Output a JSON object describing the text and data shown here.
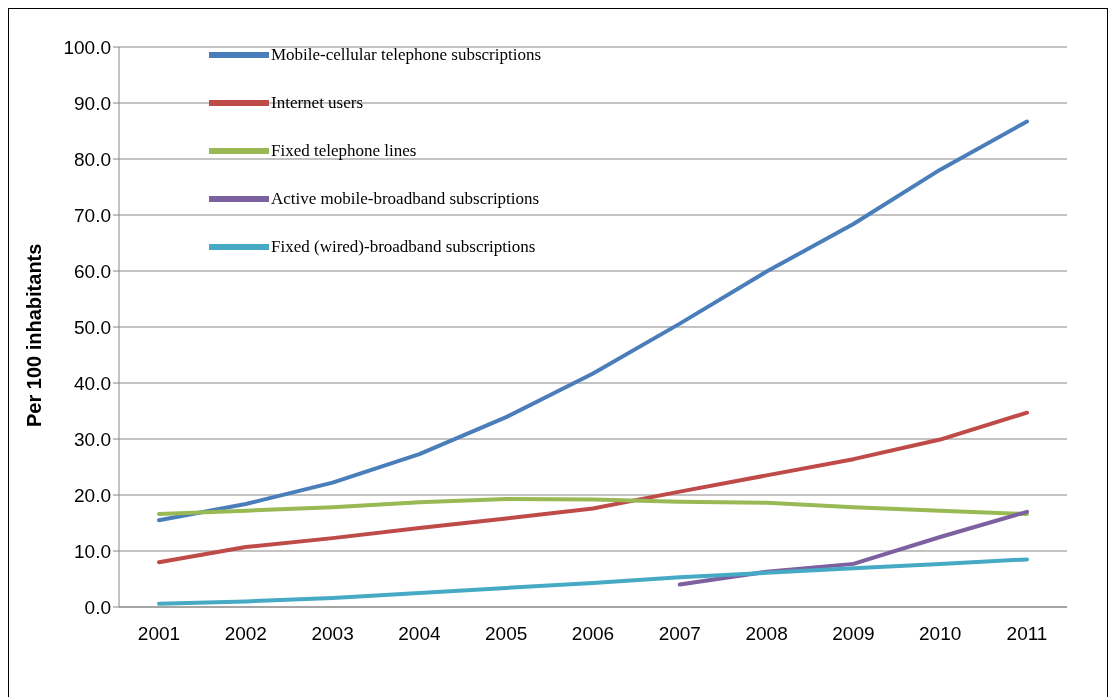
{
  "chart_data": {
    "type": "line",
    "ylabel": "Per 100 inhabitants",
    "categories": [
      "2001",
      "2002",
      "2003",
      "2004",
      "2005",
      "2006",
      "2007",
      "2008",
      "2009",
      "2010",
      "2011"
    ],
    "ylim": [
      0,
      100
    ],
    "yticks": [
      {
        "value": 0,
        "label": "0.0"
      },
      {
        "value": 10,
        "label": "10.0"
      },
      {
        "value": 20,
        "label": "20.0"
      },
      {
        "value": 30,
        "label": "30.0"
      },
      {
        "value": 40,
        "label": "40.0"
      },
      {
        "value": 50,
        "label": "50.0"
      },
      {
        "value": 60,
        "label": "60.0"
      },
      {
        "value": 70,
        "label": "70.0"
      },
      {
        "value": 80,
        "label": "80.0"
      },
      {
        "value": 90,
        "label": "90.0"
      },
      {
        "value": 100,
        "label": "100.0"
      }
    ],
    "grid": "y",
    "legend": "top left",
    "marker": "none",
    "series": [
      {
        "name": "Mobile-cellular telephone subscriptions",
        "color": "#4a7ebb",
        "values": [
          15.5,
          18.4,
          22.2,
          27.3,
          33.9,
          41.7,
          50.6,
          59.9,
          68.4,
          78.1,
          86.7
        ]
      },
      {
        "name": "Internet users",
        "color": "#be4b48",
        "values": [
          8.0,
          10.7,
          12.3,
          14.1,
          15.8,
          17.6,
          20.6,
          23.5,
          26.4,
          29.9,
          34.7
        ]
      },
      {
        "name": "Fixed telephone lines",
        "color": "#98b954",
        "values": [
          16.6,
          17.2,
          17.8,
          18.7,
          19.3,
          19.2,
          18.8,
          18.6,
          17.8,
          17.2,
          16.6
        ]
      },
      {
        "name": "Active mobile-broadband subscriptions",
        "color": "#7d60a0",
        "values": [
          null,
          null,
          null,
          null,
          null,
          null,
          4.0,
          6.3,
          7.7,
          12.5,
          17.0
        ]
      },
      {
        "name": "Fixed (wired)-broadband subscriptions",
        "color": "#46aac5",
        "values": [
          0.6,
          1.0,
          1.6,
          2.5,
          3.4,
          4.3,
          5.3,
          6.1,
          6.9,
          7.7,
          8.5
        ]
      }
    ]
  }
}
